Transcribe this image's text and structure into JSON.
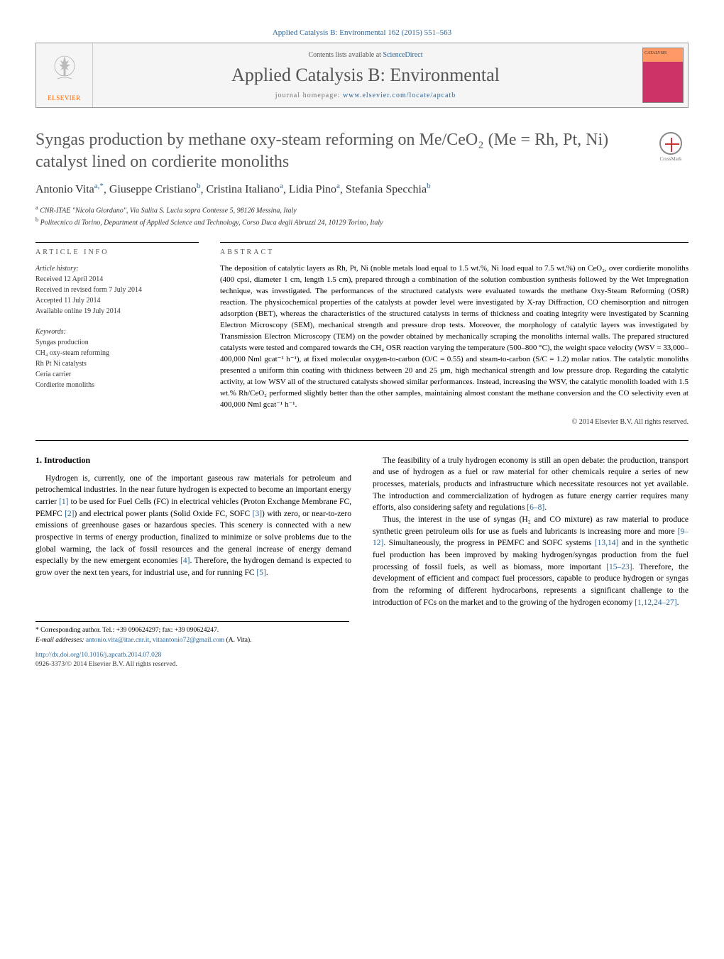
{
  "journal_ref": "Applied Catalysis B: Environmental 162 (2015) 551–563",
  "header": {
    "elsevier": "ELSEVIER",
    "contents_prefix": "Contents lists available at ",
    "contents_link": "ScienceDirect",
    "journal_name": "Applied Catalysis B: Environmental",
    "homepage_prefix": "journal homepage: ",
    "homepage_link": "www.elsevier.com/locate/apcatb"
  },
  "crossmark": "CrossMark",
  "title": "Syngas production by methane oxy-steam reforming on Me/CeO₂ (Me = Rh, Pt, Ni) catalyst lined on cordierite monoliths",
  "authors_html": "Antonio Vita<sup>a,*</sup>, Giuseppe Cristiano<sup>b</sup>, Cristina Italiano<sup>a</sup>, Lidia Pino<sup>a</sup>, Stefania Specchia<sup>b</sup>",
  "affiliations": [
    {
      "sup": "a",
      "text": "CNR-ITAE \"Nicola Giordano\", Via Salita S. Lucia sopra Contesse 5, 98126 Messina, Italy"
    },
    {
      "sup": "b",
      "text": "Politecnico di Torino, Department of Applied Science and Technology, Corso Duca degli Abruzzi 24, 10129 Torino, Italy"
    }
  ],
  "article_info": {
    "header": "ARTICLE INFO",
    "history_label": "Article history:",
    "history": [
      "Received 12 April 2014",
      "Received in revised form 7 July 2014",
      "Accepted 11 July 2014",
      "Available online 19 July 2014"
    ],
    "keywords_label": "Keywords:",
    "keywords": [
      "Syngas production",
      "CH₄ oxy-steam reforming",
      "Rh Pt Ni catalysts",
      "Ceria carrier",
      "Cordierite monoliths"
    ]
  },
  "abstract": {
    "header": "ABSTRACT",
    "text": "The deposition of catalytic layers as Rh, Pt, Ni (noble metals load equal to 1.5 wt.%, Ni load equal to 7.5 wt.%) on CeO₂, over cordierite monoliths (400 cpsi, diameter 1 cm, length 1.5 cm), prepared through a combination of the solution combustion synthesis followed by the Wet Impregnation technique, was investigated. The performances of the structured catalysts were evaluated towards the methane Oxy-Steam Reforming (OSR) reaction. The physicochemical properties of the catalysts at powder level were investigated by X-ray Diffraction, CO chemisorption and nitrogen adsorption (BET), whereas the characteristics of the structured catalysts in terms of thickness and coating integrity were investigated by Scanning Electron Microscopy (SEM), mechanical strength and pressure drop tests. Moreover, the morphology of catalytic layers was investigated by Transmission Electron Microscopy (TEM) on the powder obtained by mechanically scraping the monoliths internal walls. The prepared structured catalysts were tested and compared towards the CH₄ OSR reaction varying the temperature (500–800 °C), the weight space velocity (WSV = 33,000–400,000 Nml gcat⁻¹ h⁻¹), at fixed molecular oxygen-to-carbon (O/C = 0.55) and steam-to-carbon (S/C = 1.2) molar ratios. The catalytic monoliths presented a uniform thin coating with thickness between 20 and 25 µm, high mechanical strength and low pressure drop. Regarding the catalytic activity, at low WSV all of the structured catalysts showed similar performances. Instead, increasing the WSV, the catalytic monolith loaded with 1.5 wt.% Rh/CeO₂ performed slightly better than the other samples, maintaining almost constant the methane conversion and the CO selectivity even at 400,000 Nml gcat⁻¹ h⁻¹.",
    "copyright": "© 2014 Elsevier B.V. All rights reserved."
  },
  "body": {
    "section_heading": "1. Introduction",
    "col1_paras": [
      "Hydrogen is, currently, one of the important gaseous raw materials for petroleum and petrochemical industries. In the near future hydrogen is expected to become an important energy carrier [1] to be used for Fuel Cells (FC) in electrical vehicles (Proton Exchange Membrane FC, PEMFC [2]) and electrical power plants (Solid Oxide FC, SOFC [3]) with zero, or near-to-zero emissions of greenhouse gases or hazardous species. This scenery is connected with a new prospective in terms of energy production, finalized to minimize or solve problems due to the global warming, the lack of fossil resources and the general increase of energy demand especially by the new emergent economies [4]. Therefore, the hydrogen demand is expected to grow over the next ten years, for industrial use, and for running FC [5]."
    ],
    "col2_paras": [
      "The feasibility of a truly hydrogen economy is still an open debate: the production, transport and use of hydrogen as a fuel or raw material for other chemicals require a series of new processes, materials, products and infrastructure which necessitate resources not yet available. The introduction and commercialization of hydrogen as future energy carrier requires many efforts, also considering safety and regulations [6–8].",
      "Thus, the interest in the use of syngas (H₂ and CO mixture) as raw material to produce synthetic green petroleum oils for use as fuels and lubricants is increasing more and more [9–12]. Simultaneously, the progress in PEMFC and SOFC systems [13,14] and in the synthetic fuel production has been improved by making hydrogen/syngas production from the fuel processing of fossil fuels, as well as biomass, more important [15–23]. Therefore, the development of efficient and compact fuel processors, capable to produce hydrogen or syngas from the reforming of different hydrocarbons, represents a significant challenge to the introduction of FCs on the market and to the growing of the hydrogen economy [1,12,24–27]."
    ],
    "refs": {
      "r1": "[1]",
      "r2": "[2]",
      "r3": "[3]",
      "r4": "[4]",
      "r5": "[5]",
      "r68": "[6–8]",
      "r912": "[9–12]",
      "r1314": "[13,14]",
      "r1523": "[15–23]",
      "r11224": "[1,12,24–27]"
    }
  },
  "footnote": {
    "corr": "* Corresponding author. Tel.: +39 090624297; fax: +39 090624247.",
    "email_label": "E-mail addresses: ",
    "email1": "antonio.vita@itae.cnr.it",
    "email2": "vitaantonio72@gmail.com",
    "email_suffix": " (A. Vita).",
    "doi": "http://dx.doi.org/10.1016/j.apcatb.2014.07.028",
    "issn": "0926-3373/© 2014 Elsevier B.V. All rights reserved."
  },
  "colors": {
    "link": "#2a6496",
    "title_gray": "#5a5a5a",
    "elsevier_orange": "#ff6600"
  }
}
